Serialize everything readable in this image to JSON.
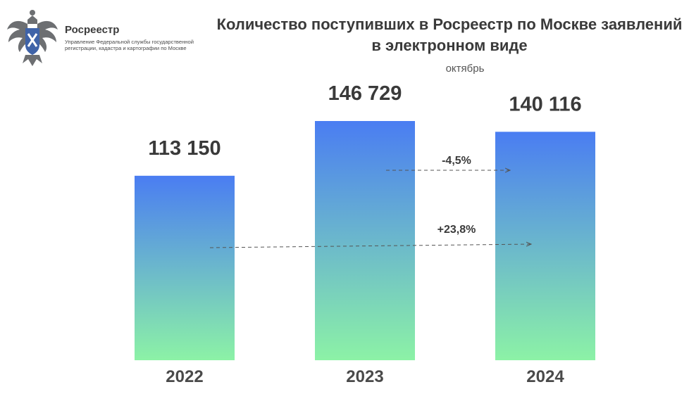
{
  "header": {
    "org_name": "Росреестр",
    "org_subtitle": "Управление Федеральной службы государственной регистрации, кадастра и картографии по Москве",
    "logo_icon": "rosreestr-emblem-icon"
  },
  "chart_data": {
    "type": "bar",
    "title": "Количество поступивших в Росреестр по Москве заявлений в электронном виде",
    "subtitle": "октябрь",
    "categories": [
      "2022",
      "2023",
      "2024"
    ],
    "values": [
      113150,
      146729,
      140116
    ],
    "value_labels": [
      "113 150",
      "146 729",
      "140 116"
    ],
    "annotations": [
      {
        "label": "-4,5%",
        "from": "2023",
        "to": "2024"
      },
      {
        "label": "+23,8%",
        "from": "2022",
        "to": "2024"
      }
    ],
    "grid": false,
    "legend": "none",
    "colors": {
      "bar_top": "#4a7df2",
      "bar_bottom": "#8cf2a6",
      "arrow": "#555555",
      "text": "#3a3a3a"
    }
  }
}
